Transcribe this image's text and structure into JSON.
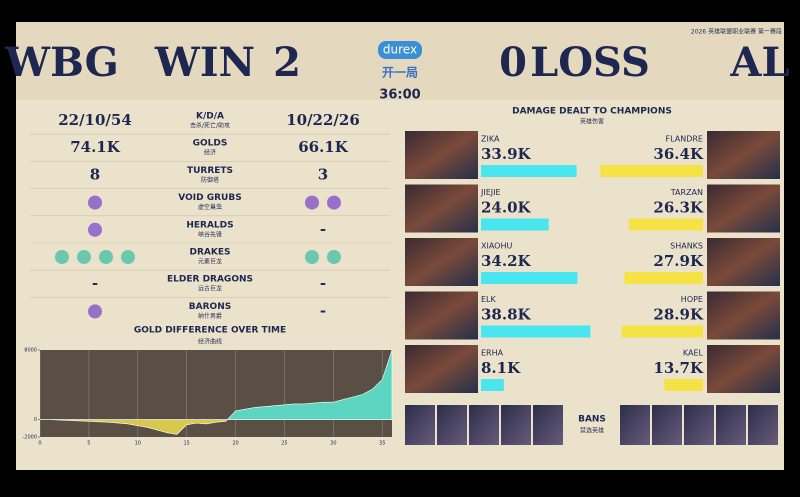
{
  "header": {
    "league": "2026 英雄联盟职业联赛 第一赛段",
    "left_team": "WBG",
    "left_result": "WIN",
    "left_score": 2,
    "sponsor": "durex",
    "game": "开一局",
    "time": "36:00",
    "right_score": 0,
    "right_result": "LOSS",
    "right_team": "AL"
  },
  "stats": [
    {
      "label": "K/D/A",
      "sub": "击杀/死亡/助攻",
      "display": "text",
      "left": "22/10/54",
      "right": "10/22/26"
    },
    {
      "label": "GOLDS",
      "sub": "经济",
      "display": "text",
      "left": "74.1K",
      "right": "66.1K"
    },
    {
      "label": "TURRETS",
      "sub": "防御塔",
      "display": "text",
      "left": "8",
      "right": "3"
    },
    {
      "label": "VOID GRUBS",
      "sub": "虚空巢虫",
      "display": "icons",
      "color": "#8a5cc9",
      "left": 1,
      "right": 2
    },
    {
      "label": "HERALDS",
      "sub": "峡谷先锋",
      "display": "icons",
      "color": "#8a5cc9",
      "left": 1,
      "right": "-"
    },
    {
      "label": "DRAKES",
      "sub": "元素巨龙",
      "display": "icons",
      "color": "#55c2a8",
      "left": 4,
      "right": 2
    },
    {
      "label": "ELDER DRAGONS",
      "sub": "远古巨龙",
      "display": "icons",
      "color": "#8a5cc9",
      "left": "-",
      "right": "-"
    },
    {
      "label": "BARONS",
      "sub": "纳什男爵",
      "display": "icons",
      "color": "#8a5cc9",
      "left": 1,
      "right": "-"
    }
  ],
  "chart_data": {
    "type": "area",
    "title": "GOLD DIFFERENCE OVER TIME",
    "subtitle": "经济曲线",
    "x": [
      0,
      1,
      2,
      3,
      4,
      5,
      6,
      7,
      8,
      9,
      10,
      11,
      12,
      13,
      14,
      15,
      16,
      17,
      18,
      19,
      20,
      21,
      22,
      23,
      24,
      25,
      26,
      27,
      28,
      29,
      30,
      31,
      32,
      33,
      34,
      35,
      36
    ],
    "values": [
      0,
      0,
      -50,
      -100,
      -150,
      -200,
      -250,
      -300,
      -400,
      -500,
      -700,
      -900,
      -1200,
      -1500,
      -1700,
      -600,
      -400,
      -500,
      -300,
      -200,
      1000,
      1200,
      1400,
      1500,
      1600,
      1700,
      1800,
      1800,
      1900,
      2000,
      2000,
      2300,
      2600,
      2900,
      3500,
      4600,
      8000
    ],
    "xlim": [
      0,
      36
    ],
    "xticks": [
      0,
      5,
      10,
      15,
      20,
      25,
      30,
      35
    ],
    "ylim": [
      -2000,
      8000
    ],
    "yticks": [
      -2000,
      0,
      8000
    ],
    "positive_color": "#5cd6c0",
    "negative_color": "#d9c84e"
  },
  "damage": {
    "title": "DAMAGE DEALT TO CHAMPIONS",
    "subtitle": "英雄伤害",
    "left_color": "#49e6ef",
    "right_color": "#f5e345",
    "left": [
      {
        "name": "ZIKA",
        "value": 33.9,
        "label": "33.9K"
      },
      {
        "name": "JIEJIE",
        "value": 24.0,
        "label": "24.0K"
      },
      {
        "name": "XIAOHU",
        "value": 34.2,
        "label": "34.2K"
      },
      {
        "name": "ELK",
        "value": 38.8,
        "label": "38.8K"
      },
      {
        "name": "ERHA",
        "value": 8.1,
        "label": "8.1K"
      }
    ],
    "right": [
      {
        "name": "FLANDRE",
        "value": 36.4,
        "label": "36.4K"
      },
      {
        "name": "TARZAN",
        "value": 26.3,
        "label": "26.3K"
      },
      {
        "name": "SHANKS",
        "value": 27.9,
        "label": "27.9K"
      },
      {
        "name": "HOPE",
        "value": 28.9,
        "label": "28.9K"
      },
      {
        "name": "KAEL",
        "value": 13.7,
        "label": "13.7K"
      }
    ]
  },
  "bans": {
    "label": "BANS",
    "sub": "禁选英雄"
  }
}
